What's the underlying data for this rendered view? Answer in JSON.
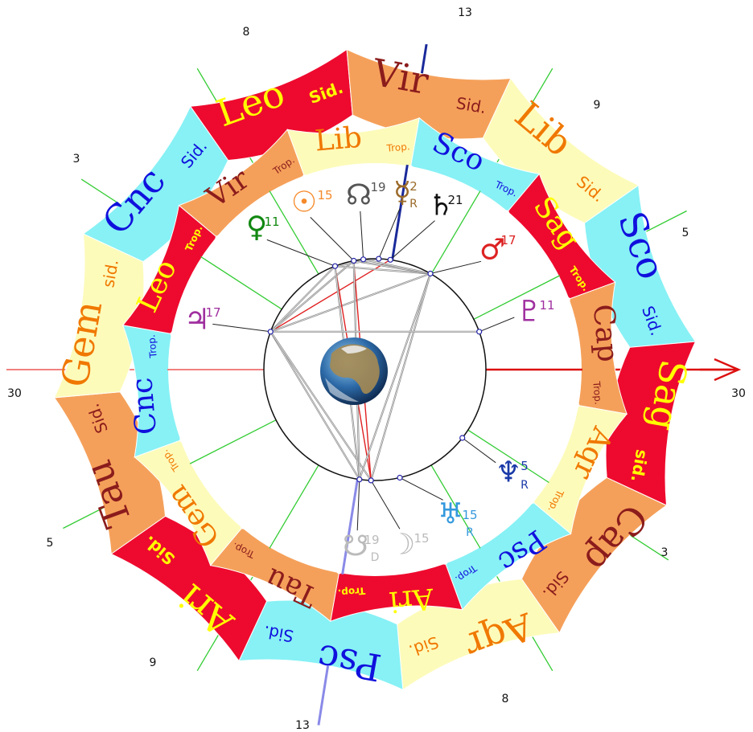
{
  "colors": {
    "red": "#ee0a2e",
    "orange": "#f5a05a",
    "yellow": "#fdfbba",
    "cyan": "#87f1f5",
    "red_text": "#ffff00",
    "orange_text": "#8b1c1c",
    "yellow_text": "#f07800",
    "cyan_text": "#1010dd",
    "axis_red": "#dd1010",
    "axis_pink": "#f08080",
    "house_green": "#33cc33",
    "aspect_gray": "#888888",
    "aspect_red": "#e02020"
  },
  "sidereal_ring": [
    {
      "key": "leo",
      "sign": "Leo",
      "tag": "Sid.",
      "color": "red"
    },
    {
      "key": "vir",
      "sign": "Vir",
      "tag": "Sid.",
      "color": "orange"
    },
    {
      "key": "lib",
      "sign": "Lib",
      "tag": "Sid.",
      "color": "yellow"
    },
    {
      "key": "sco",
      "sign": "Sco",
      "tag": "Sid.",
      "color": "cyan"
    },
    {
      "key": "sag",
      "sign": "Sag",
      "tag": "sid.",
      "color": "red"
    },
    {
      "key": "cap",
      "sign": "Cap",
      "tag": "Sid.",
      "color": "orange"
    },
    {
      "key": "aqr",
      "sign": "Aqr",
      "tag": "Sid.",
      "color": "yellow"
    },
    {
      "key": "psc",
      "sign": "Psc",
      "tag": "Sid.",
      "color": "cyan"
    },
    {
      "key": "ari",
      "sign": "Ari",
      "tag": "Sid.",
      "color": "red"
    },
    {
      "key": "tau",
      "sign": "Tau",
      "tag": "Sid.",
      "color": "orange"
    },
    {
      "key": "gem",
      "sign": "Gem",
      "tag": "sid.",
      "color": "yellow"
    },
    {
      "key": "cnc",
      "sign": "Cnc",
      "tag": "Sid.",
      "color": "cyan"
    }
  ],
  "tropical_ring": [
    {
      "key": "vir",
      "sign": "Vir",
      "tag": "Trop.",
      "color": "orange"
    },
    {
      "key": "lib",
      "sign": "Lib",
      "tag": "Trop.",
      "color": "yellow"
    },
    {
      "key": "sco",
      "sign": "Sco",
      "tag": "Trop.",
      "color": "cyan"
    },
    {
      "key": "sag",
      "sign": "Sag",
      "tag": "Trop.",
      "color": "red"
    },
    {
      "key": "cap",
      "sign": "Cap",
      "tag": "Trop.",
      "color": "orange"
    },
    {
      "key": "aqr",
      "sign": "Aqr",
      "tag": "Trop.",
      "color": "yellow"
    },
    {
      "key": "psc",
      "sign": "Psc",
      "tag": "Trop.",
      "color": "cyan"
    },
    {
      "key": "ari",
      "sign": "Ari",
      "tag": "Trop.",
      "color": "red"
    },
    {
      "key": "tau",
      "sign": "Tau",
      "tag": "Trop.",
      "color": "orange"
    },
    {
      "key": "gem",
      "sign": "Gem",
      "tag": "Trop.",
      "color": "yellow"
    },
    {
      "key": "cnc",
      "sign": "Cnc",
      "tag": "Trop.",
      "color": "cyan"
    },
    {
      "key": "leo",
      "sign": "Leo",
      "tag": "Trop.",
      "color": "red"
    }
  ],
  "axis_labels": {
    "asc": "30",
    "desc": "30",
    "mc": "13",
    "ic": "13"
  },
  "house_cusps": [
    {
      "key": "h11",
      "label": "8"
    },
    {
      "key": "h12",
      "label": "3"
    },
    {
      "key": "h2",
      "label": "5"
    },
    {
      "key": "h3",
      "label": "9"
    },
    {
      "key": "h5",
      "label": "8"
    },
    {
      "key": "h6",
      "label": "3"
    },
    {
      "key": "h8",
      "label": "5"
    },
    {
      "key": "h9",
      "label": "9"
    }
  ],
  "planets": [
    {
      "key": "sun",
      "icon": "sun-icon",
      "glyph": "☉",
      "degree": "15",
      "retro": "",
      "color": "#f58a2a"
    },
    {
      "key": "node",
      "icon": "lunar-node-icon",
      "glyph": "☊",
      "degree": "19",
      "retro": "",
      "color": "#555555"
    },
    {
      "key": "mercury",
      "icon": "mercury-icon",
      "glyph": "☿",
      "degree": "2",
      "retro": "R",
      "color": "#9a6a2a"
    },
    {
      "key": "saturn",
      "icon": "saturn-icon",
      "glyph": "♄",
      "degree": "21",
      "retro": "",
      "color": "#111111"
    },
    {
      "key": "venus",
      "icon": "venus-icon",
      "glyph": "♀",
      "degree": "11",
      "retro": "",
      "color": "#118811"
    },
    {
      "key": "mars",
      "icon": "mars-icon",
      "glyph": "♂",
      "degree": "17",
      "retro": "",
      "color": "#dd2222"
    },
    {
      "key": "pluto",
      "icon": "pluto-icon",
      "glyph": "♇",
      "degree": "11",
      "retro": "",
      "color": "#a030a0"
    },
    {
      "key": "jupiter",
      "icon": "jupiter-icon",
      "glyph": "♃",
      "degree": "17",
      "retro": "",
      "color": "#a030a0"
    },
    {
      "key": "neptune",
      "icon": "neptune-icon",
      "glyph": "♆",
      "degree": "5",
      "retro": "R",
      "color": "#1a3aa8"
    },
    {
      "key": "uranus",
      "icon": "uranus-icon",
      "glyph": "♅",
      "degree": "15",
      "retro": "R",
      "color": "#3399dd"
    },
    {
      "key": "moon",
      "icon": "moon-icon",
      "glyph": "☽",
      "degree": "15",
      "retro": "",
      "color": "#bbbbbb"
    },
    {
      "key": "south-node",
      "icon": "south-node-icon",
      "glyph": "☋",
      "degree": "19",
      "retro": "D",
      "color": "#bbbbbb"
    }
  ]
}
